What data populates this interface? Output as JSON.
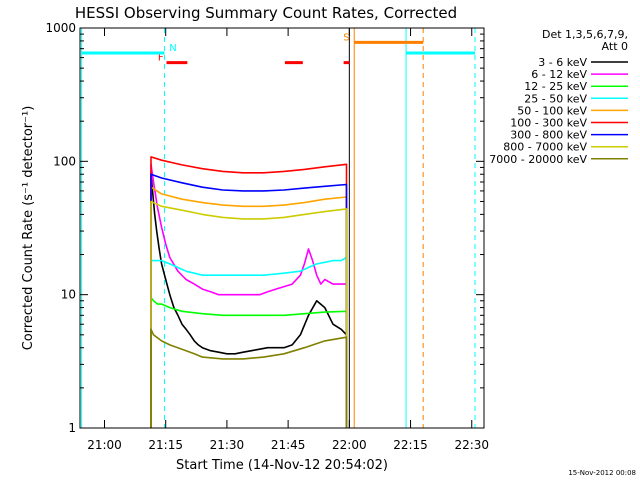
{
  "chart_data": {
    "type": "line",
    "title": "HESSI Observing Summary Count Rates, Corrected",
    "xlabel": "Start Time (14-Nov-12 20:54:02)",
    "ylabel": "Corrected Count Rate (s⁻¹ detector⁻¹)",
    "x_unit": "minutes since 20:54:02",
    "xlim": [
      0,
      99
    ],
    "ylim": [
      1,
      1000
    ],
    "yscale": "log",
    "x_ticks": [
      {
        "v": 6,
        "label": "21:00"
      },
      {
        "v": 21,
        "label": "21:15"
      },
      {
        "v": 36,
        "label": "21:30"
      },
      {
        "v": 51,
        "label": "21:45"
      },
      {
        "v": 66,
        "label": "22:00"
      },
      {
        "v": 81,
        "label": "22:15"
      },
      {
        "v": 96,
        "label": "22:30"
      }
    ],
    "y_ticks": [
      {
        "v": 1,
        "label": "1"
      },
      {
        "v": 10,
        "label": "10"
      },
      {
        "v": 100,
        "label": "100"
      },
      {
        "v": 1000,
        "label": "1000"
      }
    ],
    "legend": {
      "header": [
        "Det 1,3,5,6,7,9,",
        "Att 0"
      ],
      "placement": "right"
    },
    "series": [
      {
        "name": "3 - 6 keV",
        "color": "#000000",
        "x": [
          17.4,
          17.9,
          18.3,
          18.8,
          19.4,
          20,
          21,
          22,
          23,
          24,
          25,
          26,
          27,
          28,
          29,
          30,
          32,
          34,
          36,
          38,
          40,
          42,
          44,
          46,
          48,
          50,
          52,
          54,
          56,
          58,
          60,
          62,
          64,
          65.3
        ],
        "y": [
          80,
          55,
          40,
          30,
          22,
          17,
          13,
          10,
          8,
          7,
          6,
          5.5,
          5,
          4.5,
          4.2,
          4,
          3.8,
          3.7,
          3.6,
          3.6,
          3.7,
          3.8,
          3.9,
          4,
          4,
          4,
          4.2,
          5,
          7,
          9,
          8,
          6,
          5.5,
          5
        ]
      },
      {
        "name": "6 - 12 keV",
        "color": "#ff00ff",
        "x": [
          17.4,
          18,
          19,
          20,
          21,
          22,
          24,
          26,
          28,
          30,
          32,
          34,
          36,
          38,
          40,
          42,
          44,
          46,
          48,
          50,
          52,
          54,
          55,
          56,
          57,
          58,
          59,
          60,
          62,
          64,
          65.3
        ],
        "y": [
          95,
          70,
          45,
          32,
          24,
          19,
          15,
          13,
          12,
          11,
          10.5,
          10,
          10,
          10,
          10,
          10,
          10,
          10.5,
          11,
          11.5,
          12,
          14,
          17,
          22,
          18,
          14,
          12,
          13,
          12,
          12,
          12
        ]
      },
      {
        "name": "12 - 25 keV",
        "color": "#00ff00",
        "x": [
          17.4,
          18,
          19,
          20,
          22,
          25,
          30,
          35,
          40,
          45,
          50,
          55,
          60,
          65.3
        ],
        "y": [
          9.5,
          9,
          8.5,
          8.5,
          8,
          7.5,
          7.2,
          7,
          7,
          7,
          7,
          7.2,
          7.4,
          7.5
        ]
      },
      {
        "name": "25 - 50 keV",
        "color": "#00ffff",
        "x": [
          17.4,
          18,
          19,
          20,
          21,
          22,
          24,
          26,
          28,
          30,
          35,
          40,
          45,
          50,
          54,
          56,
          58,
          60,
          62,
          64,
          65.3
        ],
        "y": [
          18,
          18,
          18,
          18,
          17.5,
          17,
          16,
          15,
          14.5,
          14,
          14,
          14,
          14,
          14.5,
          15,
          16,
          17,
          17.5,
          18,
          18,
          19
        ]
      },
      {
        "name": "50 - 100 keV",
        "color": "#ffa500",
        "x": [
          17.4,
          20,
          25,
          30,
          35,
          40,
          45,
          50,
          55,
          60,
          65.3
        ],
        "y": [
          64,
          57,
          52,
          49,
          47,
          46,
          46,
          47,
          49,
          52,
          54
        ]
      },
      {
        "name": "100 - 300 keV",
        "color": "#ff0000",
        "x": [
          17.4,
          20,
          25,
          30,
          35,
          40,
          45,
          50,
          55,
          60,
          65.3
        ],
        "y": [
          108,
          102,
          94,
          88,
          84,
          82,
          82,
          84,
          87,
          91,
          95
        ]
      },
      {
        "name": "300 - 800 keV",
        "color": "#0000ff",
        "x": [
          17.4,
          20,
          25,
          30,
          35,
          40,
          45,
          50,
          55,
          60,
          65.3
        ],
        "y": [
          80,
          75,
          69,
          64,
          61,
          60,
          60,
          61,
          63,
          65,
          67
        ]
      },
      {
        "name": "800 - 7000 keV",
        "color": "#cccc00",
        "x": [
          17.4,
          20,
          25,
          30,
          35,
          40,
          45,
          50,
          55,
          60,
          65.3
        ],
        "y": [
          50,
          46,
          43,
          40,
          38,
          37,
          37,
          38,
          40,
          42,
          44
        ]
      },
      {
        "name": "7000 - 20000 keV",
        "color": "#808000",
        "x": [
          17.4,
          18,
          20,
          22,
          25,
          28,
          30,
          35,
          40,
          45,
          50,
          55,
          60,
          65.3
        ],
        "y": [
          5.5,
          5,
          4.5,
          4.2,
          3.9,
          3.6,
          3.4,
          3.3,
          3.3,
          3.4,
          3.6,
          4,
          4.5,
          4.8
        ]
      }
    ],
    "flags": [
      {
        "label": "F",
        "color": "#ff0000",
        "y": 550,
        "label_x": 19.8,
        "segments": [
          [
            21.2,
            26.3
          ],
          [
            50.2,
            54.6
          ],
          [
            64.6,
            66.0
          ]
        ]
      },
      {
        "label": "N",
        "color": "#00ffff",
        "y": 650,
        "label_x": 22.8,
        "segments": []
      },
      {
        "label": "S",
        "color": "#ff8000",
        "y": 780,
        "label_x": 65.3,
        "segments": [
          [
            67.2,
            84.1
          ]
        ]
      },
      {
        "label": "",
        "color": "#00ffff",
        "y": 650,
        "label_x": 0,
        "segments": [
          [
            0.4,
            20.7
          ],
          [
            79.9,
            96.8
          ]
        ]
      }
    ],
    "vlines": [
      {
        "x": 20.7,
        "color": "#00ffff",
        "style": "dashed"
      },
      {
        "x": 96.8,
        "color": "#00ffff",
        "style": "dashed"
      },
      {
        "x": 0.4,
        "color": "#00ffff",
        "style": "solid"
      },
      {
        "x": 79.9,
        "color": "#00ffff",
        "style": "solid"
      },
      {
        "x": 67.2,
        "color": "#ff8000",
        "style": "solid"
      },
      {
        "x": 84.1,
        "color": "#ff8000",
        "style": "dashed"
      },
      {
        "x": 66.0,
        "color": "#000000",
        "style": "solid"
      }
    ]
  },
  "footer": {
    "timestamp": "15-Nov-2012 00:08"
  }
}
